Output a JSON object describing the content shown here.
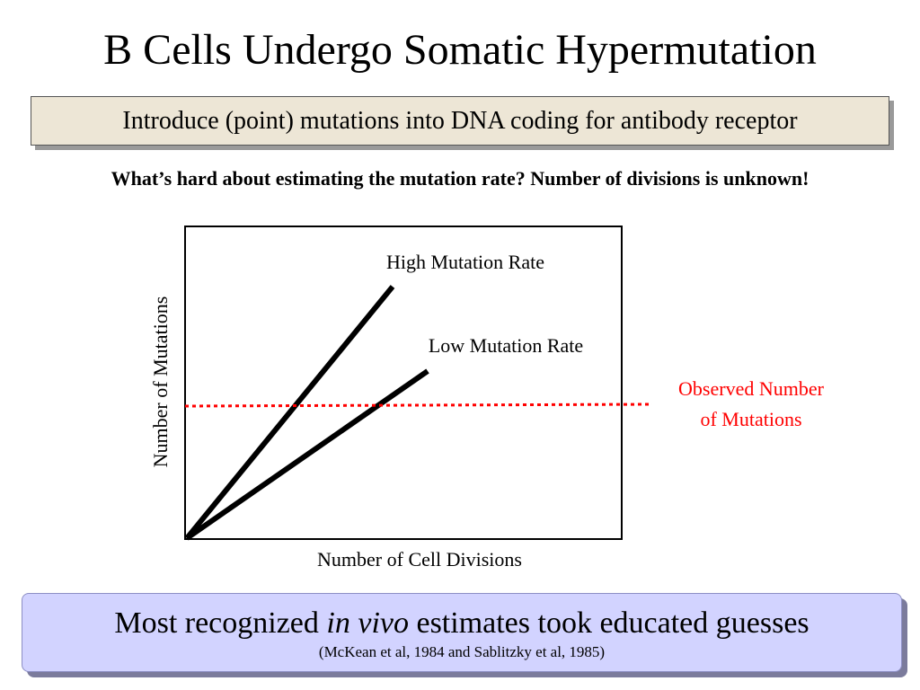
{
  "slide": {
    "title": "B Cells Undergo Somatic Hypermutation",
    "subtitle": "Introduce (point) mutations into DNA coding for antibody receptor",
    "question": "What’s hard about estimating the mutation rate? Number of divisions is unknown!"
  },
  "diagram": {
    "xlabel": "Number of Cell Divisions",
    "ylabel": "Number of Mutations",
    "high_label": "High Mutation Rate",
    "low_label": "Low Mutation Rate",
    "observed_label_line1": "Observed Number",
    "observed_label_line2": "of Mutations",
    "observed_color": "#ff0000",
    "line_color": "#000000"
  },
  "footer": {
    "main_before": "Most recognized ",
    "main_italic": "in vivo",
    "main_after": " estimates took educated guesses",
    "citation": "(McKean et al, 1984 and Sablitzky et al, 1985)",
    "background_color": "#d2d3ff"
  }
}
